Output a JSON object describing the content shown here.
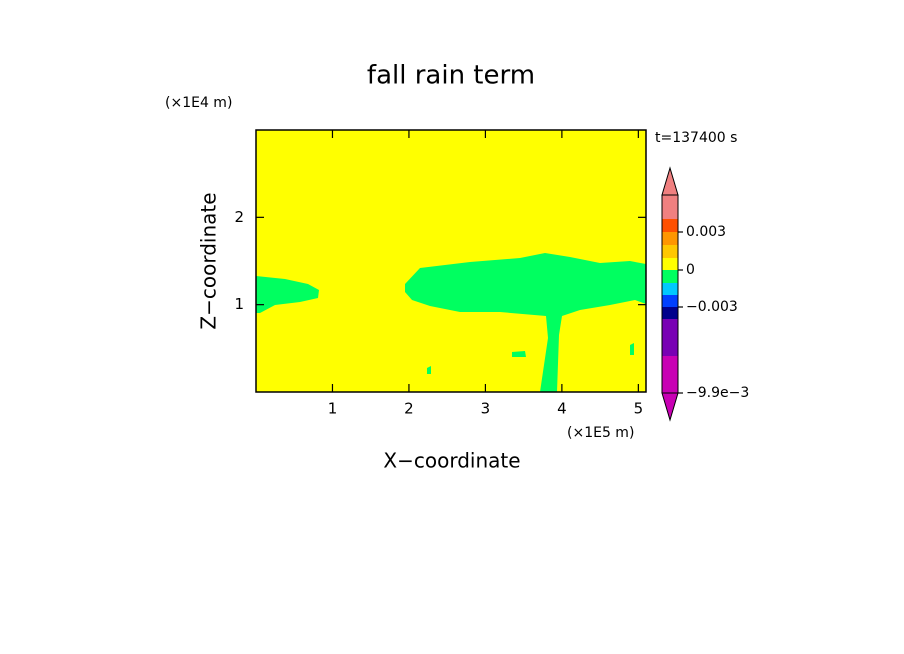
{
  "chart_data": {
    "type": "contour",
    "title": "fall rain term",
    "x_label": "X−coordinate",
    "y_label": "Z−coordinate",
    "x_unit": "(×1E5 m)",
    "y_unit": "(×1E4 m)",
    "annotation": "t=137400 s",
    "background_color": "#ffff00",
    "region_color": "#00ff60",
    "xlim": [
      0,
      5.1
    ],
    "xticks": [
      1,
      2,
      3,
      4,
      5
    ],
    "ylim": [
      0,
      3
    ],
    "yticks": [
      1,
      2
    ],
    "colorbar": {
      "colors": [
        "#c800b4",
        "#c800b4",
        "#7800b4",
        "#00008c",
        "#0040ff",
        "#00c8ff",
        "#00ff60",
        "#ffff00",
        "#ffc800",
        "#ff9600",
        "#ff5000",
        "#f08080",
        "#f08080"
      ],
      "ticks": [
        {
          "value": -0.0099,
          "label": "−9.9e−3"
        },
        {
          "value": -0.003,
          "label": "−0.003"
        },
        0,
        0.003
      ]
    }
  }
}
